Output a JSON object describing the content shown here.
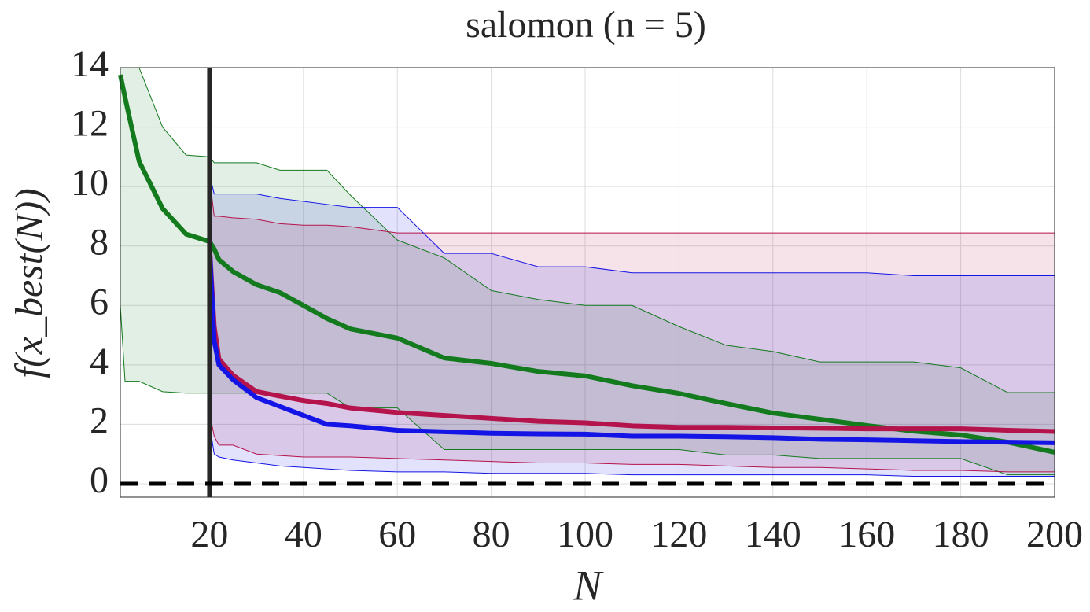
{
  "chart_data": {
    "type": "line",
    "title": "salomon (n = 5)",
    "xlabel": "N",
    "ylabel": "f(x_best(N))",
    "x": [
      1,
      2,
      5,
      10,
      15,
      20,
      21,
      22,
      25,
      30,
      35,
      40,
      45,
      50,
      60,
      70,
      80,
      90,
      100,
      110,
      120,
      130,
      140,
      150,
      160,
      170,
      180,
      190,
      200
    ],
    "series": [
      {
        "color": "#137a1e",
        "values": [
          13.76,
          13.0,
          10.85,
          9.26,
          8.4,
          8.15,
          7.9,
          7.54,
          7.14,
          6.7,
          6.43,
          6.0,
          5.56,
          5.21,
          4.9,
          4.23,
          4.05,
          3.78,
          3.63,
          3.3,
          3.04,
          2.7,
          2.38,
          2.17,
          1.96,
          1.77,
          1.64,
          1.4,
          1.06
        ],
        "upper": [
          14,
          14,
          14,
          12.0,
          11.06,
          11.0,
          10.8,
          10.8,
          10.8,
          10.8,
          10.55,
          10.55,
          10.55,
          9.71,
          8.2,
          7.6,
          6.5,
          6.2,
          6.0,
          6.0,
          5.29,
          4.66,
          4.45,
          4.1,
          4.1,
          4.1,
          3.9,
          3.07,
          3.07
        ],
        "lower": [
          6.0,
          3.45,
          3.45,
          3.1,
          3.05,
          3.05,
          3.05,
          3.05,
          3.05,
          3.05,
          3.05,
          3.05,
          3.05,
          2.55,
          2.55,
          1.15,
          1.15,
          1.15,
          1.15,
          1.15,
          1.15,
          0.97,
          0.97,
          0.85,
          0.85,
          0.85,
          0.85,
          0.3,
          0.3
        ]
      },
      {
        "color": "#b5134b",
        "values": [
          null,
          null,
          null,
          null,
          null,
          8.0,
          5.3,
          4.2,
          3.65,
          3.1,
          2.95,
          2.8,
          2.7,
          2.55,
          2.4,
          2.3,
          2.2,
          2.1,
          2.05,
          1.95,
          1.9,
          1.9,
          1.88,
          1.87,
          1.85,
          1.85,
          1.85,
          1.8,
          1.76
        ],
        "upper": [
          null,
          null,
          null,
          null,
          null,
          10.3,
          9.0,
          9.0,
          8.95,
          8.9,
          8.75,
          8.7,
          8.7,
          8.65,
          8.44,
          8.44,
          8.44,
          8.44,
          8.44,
          8.44,
          8.44,
          8.44,
          8.44,
          8.44,
          8.44,
          8.44,
          8.44,
          8.44,
          8.44
        ],
        "lower": [
          null,
          null,
          null,
          null,
          null,
          2.4,
          1.6,
          1.3,
          1.3,
          1.0,
          0.95,
          0.9,
          0.9,
          0.9,
          0.85,
          0.8,
          0.75,
          0.7,
          0.7,
          0.65,
          0.65,
          0.6,
          0.55,
          0.55,
          0.5,
          0.45,
          0.45,
          0.4,
          0.4
        ]
      },
      {
        "color": "#1414e6",
        "values": [
          null,
          null,
          null,
          null,
          null,
          8.0,
          4.8,
          4.0,
          3.5,
          2.9,
          2.6,
          2.3,
          2.0,
          1.95,
          1.8,
          1.75,
          1.7,
          1.68,
          1.67,
          1.6,
          1.6,
          1.58,
          1.55,
          1.5,
          1.48,
          1.45,
          1.42,
          1.4,
          1.38
        ],
        "upper": [
          null,
          null,
          null,
          null,
          null,
          10.4,
          9.75,
          9.75,
          9.75,
          9.75,
          9.6,
          9.5,
          9.4,
          9.3,
          9.3,
          7.75,
          7.75,
          7.3,
          7.3,
          7.1,
          7.1,
          7.1,
          7.1,
          7.1,
          7.1,
          7.0,
          7.0,
          7.0,
          7.0
        ],
        "lower": [
          null,
          null,
          null,
          null,
          null,
          2.0,
          1.0,
          0.9,
          0.8,
          0.7,
          0.6,
          0.55,
          0.5,
          0.45,
          0.4,
          0.4,
          0.35,
          0.35,
          0.35,
          0.3,
          0.3,
          0.3,
          0.3,
          0.3,
          0.3,
          0.25,
          0.25,
          0.25,
          0.25
        ]
      }
    ],
    "vline": 20,
    "hline": 0,
    "xlim": [
      1,
      200
    ],
    "ylim": [
      -0.45,
      14
    ],
    "xticks": [
      20,
      40,
      60,
      80,
      100,
      120,
      140,
      160,
      180,
      200
    ],
    "yticks": [
      0,
      2,
      4,
      6,
      8,
      10,
      12,
      14
    ],
    "grid": true
  }
}
